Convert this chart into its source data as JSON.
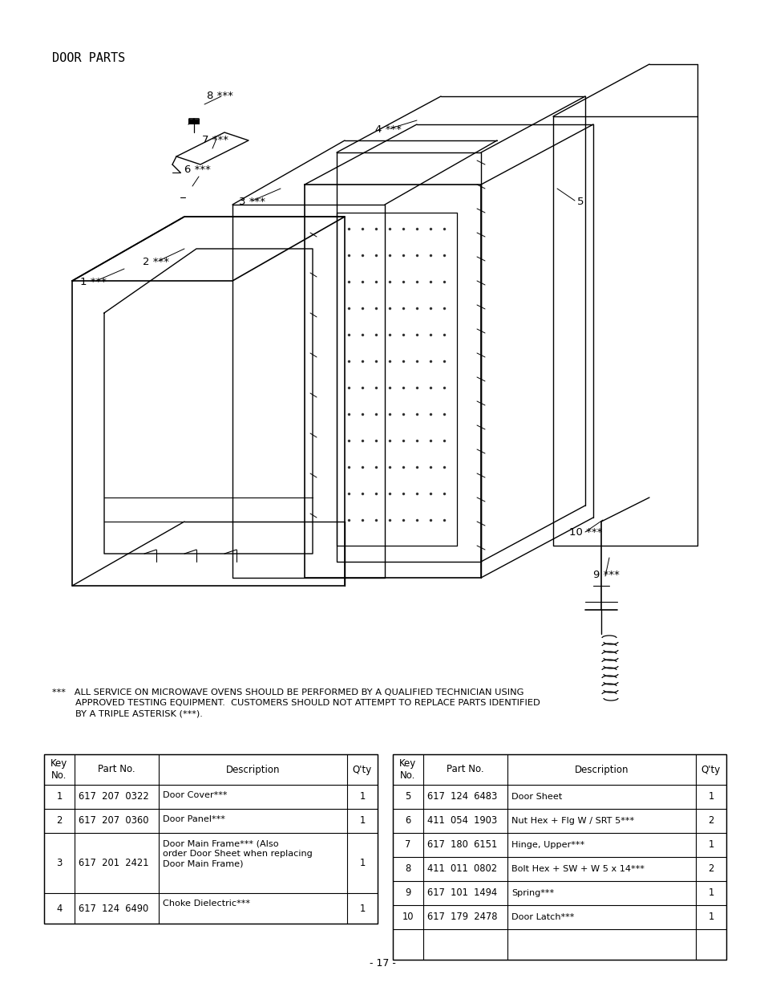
{
  "title": "DOOR PARTS",
  "page_number": "- 17 -",
  "disclaimer": "***   ALL SERVICE ON MICROWAVE OVENS SHOULD BE PERFORMED BY A QUALIFIED TECHNICIAN USING\n        APPROVED TESTING EQUIPMENT.  CUSTOMERS SHOULD NOT ATTEMPT TO REPLACE PARTS IDENTIFIED\n        BY A TRIPLE ASTERISK (***).",
  "bg_color": "#ffffff",
  "table_left": {
    "headers": [
      "Key\nNo.",
      "Part No.",
      "Description",
      "Q'ty"
    ],
    "rows": [
      [
        "1",
        "617  207  0322",
        "Door Cover***",
        "1"
      ],
      [
        "2",
        "617  207  0360",
        "Door Panel***",
        "1"
      ],
      [
        "3",
        "617  201  2421",
        "Door Main Frame*** (Also\norder Door Sheet when replacing\nDoor Main Frame)",
        "1"
      ],
      [
        "4",
        "617  124  6490",
        "Choke Dielectric***",
        "1"
      ]
    ]
  },
  "table_right": {
    "headers": [
      "Key\nNo.",
      "Part No.",
      "Description",
      "Q'ty"
    ],
    "rows": [
      [
        "5",
        "617  124  6483",
        "Door Sheet",
        "1"
      ],
      [
        "6",
        "411  054  1903",
        "Nut Hex + Flg W / SRT 5***",
        "2"
      ],
      [
        "7",
        "617  180  6151",
        "Hinge, Upper***",
        "1"
      ],
      [
        "8",
        "411  011  0802",
        "Bolt Hex + SW + W 5 x 14***",
        "2"
      ],
      [
        "9",
        "617  101  1494",
        "Spring***",
        "1"
      ],
      [
        "10",
        "617  179  2478",
        "Door Latch***",
        "1"
      ]
    ]
  }
}
